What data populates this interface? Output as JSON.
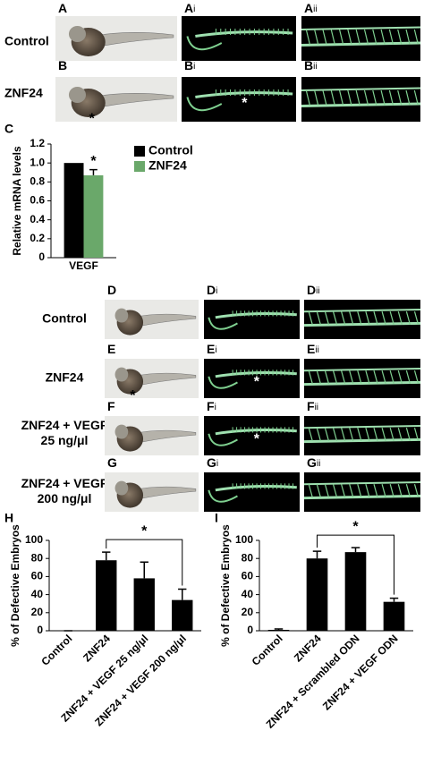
{
  "figure": {
    "top_rows": [
      {
        "label": [
          "Control"
        ],
        "panels": [
          {
            "letter": "A"
          },
          {
            "letter": "A",
            "sub": "i"
          },
          {
            "letter": "A",
            "sub": "ii"
          }
        ]
      },
      {
        "label": [
          "ZNF24"
        ],
        "panels": [
          {
            "letter": "B",
            "mark": "*"
          },
          {
            "letter": "B",
            "sub": "i",
            "mark": "*"
          },
          {
            "letter": "B",
            "sub": "ii"
          }
        ]
      }
    ],
    "bottom_rows": [
      {
        "label": [
          "Control"
        ],
        "panels": [
          {
            "letter": "D"
          },
          {
            "letter": "D",
            "sub": "i"
          },
          {
            "letter": "D",
            "sub": "ii"
          }
        ]
      },
      {
        "label": [
          "ZNF24"
        ],
        "panels": [
          {
            "letter": "E",
            "mark": "*"
          },
          {
            "letter": "E",
            "sub": "i",
            "mark": "*"
          },
          {
            "letter": "E",
            "sub": "ii"
          }
        ]
      },
      {
        "label": [
          "ZNF24 + VEGF",
          "25 ng/μl"
        ],
        "panels": [
          {
            "letter": "F"
          },
          {
            "letter": "F",
            "sub": "i",
            "mark": "*"
          },
          {
            "letter": "F",
            "sub": "ii"
          }
        ]
      },
      {
        "label": [
          "ZNF24 + VEGF",
          "200 ng/μl"
        ],
        "panels": [
          {
            "letter": "G"
          },
          {
            "letter": "G",
            "sub": "i"
          },
          {
            "letter": "G",
            "sub": "ii"
          }
        ]
      }
    ]
  },
  "chart_data": [
    {
      "type": "bar",
      "panel": "C",
      "y_label": "Relative mRNA levels",
      "categories": [
        "VEGF"
      ],
      "series": [
        {
          "name": "Control",
          "color": "#000000",
          "values": [
            1.0
          ]
        },
        {
          "name": "ZNF24",
          "color": "#6aa86a",
          "values": [
            0.87
          ],
          "errors": [
            0.06
          ],
          "annotation": "*"
        }
      ],
      "ylim": [
        0,
        1.2
      ],
      "yticks": [
        0,
        0.2,
        0.4,
        0.6,
        0.8,
        {
          "value": 1,
          "label": "1.0"
        },
        1.2
      ],
      "legend": "right"
    },
    {
      "type": "bar",
      "panel": "H",
      "y_label": "% of Defective Embryos",
      "categories": [
        "Control",
        "ZNF24",
        "ZNF24 + VEGF 25 ng/μl",
        "ZNF24 + VEGF 200 ng/μl"
      ],
      "values": [
        0,
        78,
        58,
        34
      ],
      "errors": [
        0,
        9,
        18,
        12
      ],
      "color": "#000000",
      "ylim": [
        0,
        100
      ],
      "yticks": [
        0,
        20,
        40,
        60,
        80,
        100
      ],
      "significance": {
        "label": "*",
        "categories": [
          1,
          3
        ]
      }
    },
    {
      "type": "bar",
      "panel": "I",
      "y_label": "% of Defective Embryos",
      "categories": [
        "Control",
        "ZNF24",
        "ZNF24 + Scrambled ODN",
        "ZNF24 + VEGF ODN"
      ],
      "values": [
        1,
        80,
        87,
        32
      ],
      "errors": [
        1,
        8,
        5,
        4
      ],
      "color": "#000000",
      "ylim": [
        0,
        100
      ],
      "yticks": [
        0,
        20,
        40,
        60,
        80,
        100
      ],
      "significance": {
        "label": "*",
        "categories": [
          1,
          3
        ]
      }
    }
  ]
}
